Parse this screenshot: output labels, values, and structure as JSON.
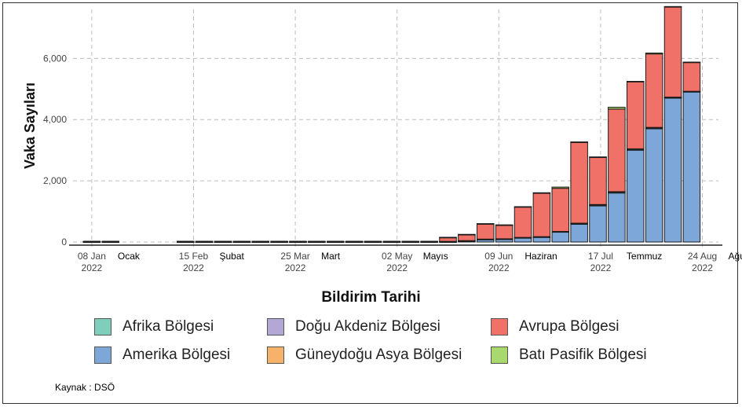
{
  "chart_data": {
    "type": "bar",
    "stacked": true,
    "ylabel": "Vaka Sayıları",
    "xlabel": "Bildirim Tarihi",
    "ylim": [
      0,
      7600
    ],
    "yticks": [
      0,
      2000,
      4000,
      6000
    ],
    "ytick_labels": [
      "0",
      "2,000",
      "4,000",
      "6,000"
    ],
    "xticks": [
      {
        "date": "08 Jan",
        "year": "2022",
        "month": "Ocak"
      },
      {
        "date": "15 Feb",
        "year": "2022",
        "month": "Şubat"
      },
      {
        "date": "25 Mar",
        "year": "2022",
        "month": "Mart"
      },
      {
        "date": "02 May",
        "year": "2022",
        "month": "Mayıs"
      },
      {
        "date": "09 Jun",
        "year": "2022",
        "month": "Haziran"
      },
      {
        "date": "17 Jul",
        "year": "2022",
        "month": "Temmuz"
      },
      {
        "date": "24 Aug",
        "year": "2022",
        "month": "Ağu"
      }
    ],
    "grid": true,
    "legend_position": "bottom",
    "categories": [
      "2022-01-08",
      "2022-01-15",
      "2022-01-22",
      "2022-01-29",
      "2022-02-05",
      "2022-02-12",
      "2022-02-19",
      "2022-02-26",
      "2022-03-05",
      "2022-03-12",
      "2022-03-19",
      "2022-03-26",
      "2022-04-02",
      "2022-04-09",
      "2022-04-16",
      "2022-04-23",
      "2022-04-30",
      "2022-05-07",
      "2022-05-14",
      "2022-05-21",
      "2022-05-28",
      "2022-06-04",
      "2022-06-11",
      "2022-06-18",
      "2022-06-25",
      "2022-07-02",
      "2022-07-09",
      "2022-07-16",
      "2022-07-23",
      "2022-07-30",
      "2022-08-06",
      "2022-08-13",
      "2022-08-20"
    ],
    "series": [
      {
        "name": "Afrika  Bölgesi",
        "color": "#7fcdbb",
        "values": [
          5,
          5,
          0,
          0,
          0,
          5,
          5,
          5,
          5,
          5,
          5,
          5,
          5,
          5,
          5,
          5,
          5,
          5,
          5,
          10,
          10,
          10,
          10,
          15,
          20,
          20,
          30,
          40,
          40,
          40,
          40,
          30,
          20
        ]
      },
      {
        "name": "Doğu Akdeniz Bölgesi",
        "color": "#b3a7d6",
        "values": [
          0,
          0,
          0,
          0,
          0,
          0,
          0,
          0,
          0,
          0,
          0,
          0,
          0,
          0,
          0,
          0,
          0,
          0,
          0,
          5,
          5,
          5,
          5,
          5,
          5,
          5,
          5,
          5,
          5,
          5,
          5,
          5,
          5
        ]
      },
      {
        "name": "Avrupa Bölgesi",
        "color": "#f07167",
        "values": [
          15,
          15,
          0,
          0,
          0,
          15,
          15,
          15,
          15,
          15,
          15,
          15,
          15,
          15,
          15,
          15,
          15,
          15,
          15,
          130,
          200,
          500,
          450,
          1000,
          1430,
          1410,
          2650,
          1550,
          2700,
          2200,
          2400,
          2950,
          950
        ]
      },
      {
        "name": "Amerika  Bölgesi",
        "color": "#7da7d9",
        "values": [
          5,
          5,
          0,
          0,
          0,
          5,
          5,
          5,
          5,
          5,
          5,
          5,
          5,
          5,
          5,
          5,
          5,
          5,
          5,
          5,
          30,
          80,
          90,
          130,
          150,
          320,
          580,
          1180,
          1600,
          3000,
          3700,
          4700,
          4900
        ]
      },
      {
        "name": "Güneydoğu Asya Bölgesi",
        "color": "#f6b26b",
        "values": [
          0,
          0,
          0,
          0,
          0,
          0,
          0,
          0,
          0,
          0,
          0,
          0,
          0,
          0,
          0,
          0,
          0,
          0,
          0,
          0,
          0,
          0,
          0,
          0,
          0,
          0,
          0,
          0,
          0,
          0,
          0,
          0,
          0
        ]
      },
      {
        "name": "Batı Pasifik Bölgesi",
        "color": "#a9d86e",
        "values": [
          0,
          0,
          0,
          0,
          0,
          0,
          0,
          0,
          0,
          0,
          0,
          0,
          0,
          0,
          0,
          0,
          0,
          0,
          0,
          5,
          5,
          5,
          5,
          5,
          5,
          40,
          5,
          5,
          60,
          5,
          30,
          10,
          5
        ]
      }
    ],
    "source": "Kaynak : DSÖ"
  }
}
